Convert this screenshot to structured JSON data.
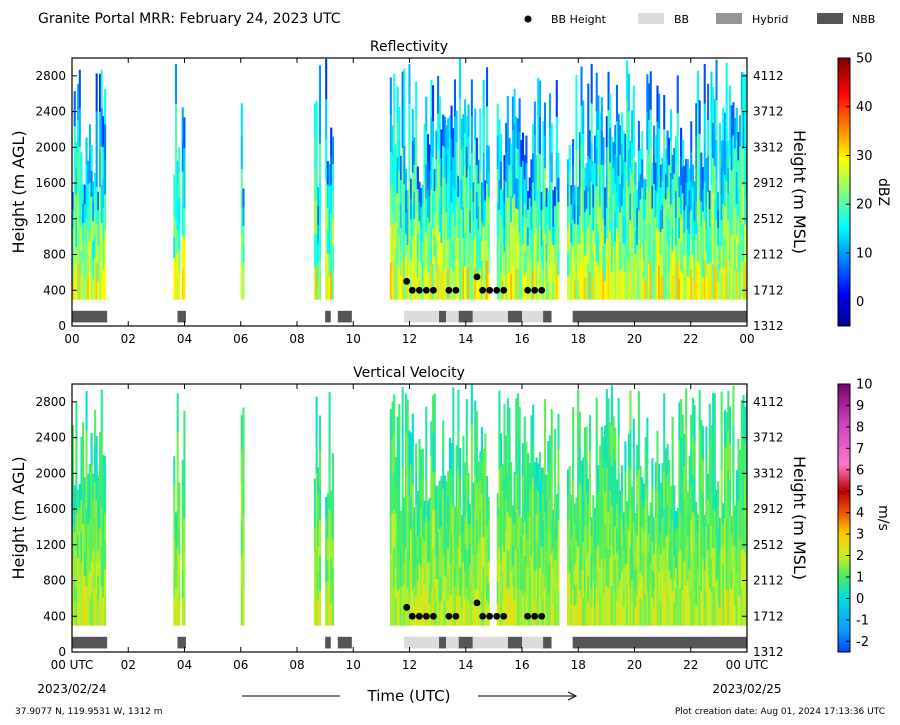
{
  "header": {
    "title": "Granite Portal MRR:  February 24, 2023 UTC",
    "legend": [
      {
        "label": "BB Height",
        "kind": "dot",
        "color": "#000000"
      },
      {
        "label": "BB",
        "kind": "patch",
        "color": "#dcdcdc"
      },
      {
        "label": "Hybrid",
        "kind": "patch",
        "color": "#969696"
      },
      {
        "label": "NBB",
        "kind": "patch",
        "color": "#555555"
      }
    ]
  },
  "footer": {
    "location": "37.9077 N, 119.9531 W, 1312 m",
    "creation": "Plot creation date: Aug 01, 2024 17:13:36 UTC",
    "xlabel": "Time (UTC)",
    "start_date": "2023/02/24",
    "end_date": "2023/02/25"
  },
  "chart_data": [
    {
      "type": "heatmap",
      "title": "Reflectivity",
      "ylabel": "Height (m AGL)",
      "y2label": "Height (m MSL)",
      "xlim": [
        0,
        24
      ],
      "ylim": [
        0,
        3000
      ],
      "x_ticks": [
        "00",
        "02",
        "04",
        "06",
        "08",
        "10",
        "12",
        "14",
        "16",
        "18",
        "20",
        "22",
        "00"
      ],
      "y_ticks": [
        0,
        400,
        800,
        1200,
        1600,
        2000,
        2400,
        2800
      ],
      "y2_ticks": [
        1312,
        1712,
        2112,
        2512,
        2912,
        3312,
        3712,
        4112
      ],
      "colorbar": {
        "label": "dBZ",
        "min": -5,
        "max": 50,
        "ticks": [
          0,
          10,
          20,
          30,
          40,
          50
        ],
        "palette": "jet"
      },
      "precip_periods": [
        [
          0.0,
          1.2
        ],
        [
          3.6,
          3.8
        ],
        [
          3.9,
          4.0
        ],
        [
          6.0,
          6.1
        ],
        [
          8.6,
          8.8
        ],
        [
          9.0,
          9.3
        ],
        [
          11.3,
          14.8
        ],
        [
          15.1,
          17.3
        ],
        [
          17.6,
          24.0
        ]
      ],
      "bb_height": [
        {
          "t": 11.9,
          "h": 500
        },
        {
          "t": 12.1,
          "h": 400
        },
        {
          "t": 12.35,
          "h": 400
        },
        {
          "t": 12.6,
          "h": 400
        },
        {
          "t": 12.85,
          "h": 400
        },
        {
          "t": 13.4,
          "h": 400
        },
        {
          "t": 13.65,
          "h": 400
        },
        {
          "t": 14.4,
          "h": 550
        },
        {
          "t": 14.6,
          "h": 400
        },
        {
          "t": 14.85,
          "h": 400
        },
        {
          "t": 15.1,
          "h": 400
        },
        {
          "t": 15.35,
          "h": 400
        },
        {
          "t": 16.2,
          "h": 400
        },
        {
          "t": 16.45,
          "h": 400
        },
        {
          "t": 16.7,
          "h": 400
        }
      ],
      "bb_class": [
        {
          "start": 0.0,
          "end": 1.25,
          "class": "NBB"
        },
        {
          "start": 3.75,
          "end": 4.05,
          "class": "NBB"
        },
        {
          "start": 9.0,
          "end": 9.2,
          "class": "NBB"
        },
        {
          "start": 9.45,
          "end": 9.95,
          "class": "NBB"
        },
        {
          "start": 11.8,
          "end": 13.05,
          "class": "BB"
        },
        {
          "start": 13.05,
          "end": 13.3,
          "class": "NBB"
        },
        {
          "start": 13.3,
          "end": 13.75,
          "class": "BB"
        },
        {
          "start": 13.75,
          "end": 14.25,
          "class": "NBB"
        },
        {
          "start": 14.25,
          "end": 15.5,
          "class": "BB"
        },
        {
          "start": 15.5,
          "end": 16.0,
          "class": "NBB"
        },
        {
          "start": 16.0,
          "end": 16.75,
          "class": "BB"
        },
        {
          "start": 16.75,
          "end": 17.05,
          "class": "NBB"
        },
        {
          "start": 17.8,
          "end": 24.0,
          "class": "NBB"
        }
      ]
    },
    {
      "type": "heatmap",
      "title": "Vertical Velocity",
      "ylabel": "Height (m AGL)",
      "y2label": "Height (m MSL)",
      "xlim": [
        0,
        24
      ],
      "ylim": [
        0,
        3000
      ],
      "x_ticks": [
        "00 UTC",
        "02",
        "04",
        "06",
        "08",
        "10",
        "12",
        "14",
        "16",
        "18",
        "20",
        "22",
        "00 UTC"
      ],
      "y_ticks": [
        0,
        400,
        800,
        1200,
        1600,
        2000,
        2400,
        2800
      ],
      "y2_ticks": [
        1312,
        1712,
        2112,
        2512,
        2912,
        3312,
        3712,
        4112
      ],
      "colorbar": {
        "label": "m/s",
        "min": -2.5,
        "max": 10,
        "ticks": [
          -2,
          -1,
          0,
          1,
          2,
          3,
          4,
          5,
          6,
          7,
          8,
          9,
          10
        ],
        "palette": "velocity"
      },
      "precip_periods": [
        [
          0.0,
          1.2
        ],
        [
          3.6,
          3.8
        ],
        [
          3.9,
          4.0
        ],
        [
          6.0,
          6.1
        ],
        [
          8.6,
          8.8
        ],
        [
          9.0,
          9.3
        ],
        [
          11.3,
          14.8
        ],
        [
          15.1,
          17.3
        ],
        [
          17.6,
          24.0
        ]
      ],
      "bb_height": [
        {
          "t": 11.9,
          "h": 500
        },
        {
          "t": 12.1,
          "h": 400
        },
        {
          "t": 12.35,
          "h": 400
        },
        {
          "t": 12.6,
          "h": 400
        },
        {
          "t": 12.85,
          "h": 400
        },
        {
          "t": 13.4,
          "h": 400
        },
        {
          "t": 13.65,
          "h": 400
        },
        {
          "t": 14.4,
          "h": 550
        },
        {
          "t": 14.6,
          "h": 400
        },
        {
          "t": 14.85,
          "h": 400
        },
        {
          "t": 15.1,
          "h": 400
        },
        {
          "t": 15.35,
          "h": 400
        },
        {
          "t": 16.2,
          "h": 400
        },
        {
          "t": 16.45,
          "h": 400
        },
        {
          "t": 16.7,
          "h": 400
        }
      ],
      "bb_class": [
        {
          "start": 0.0,
          "end": 1.25,
          "class": "NBB"
        },
        {
          "start": 3.75,
          "end": 4.05,
          "class": "NBB"
        },
        {
          "start": 9.0,
          "end": 9.2,
          "class": "NBB"
        },
        {
          "start": 9.45,
          "end": 9.95,
          "class": "NBB"
        },
        {
          "start": 11.8,
          "end": 13.05,
          "class": "BB"
        },
        {
          "start": 13.05,
          "end": 13.3,
          "class": "NBB"
        },
        {
          "start": 13.3,
          "end": 13.75,
          "class": "BB"
        },
        {
          "start": 13.75,
          "end": 14.25,
          "class": "NBB"
        },
        {
          "start": 14.25,
          "end": 15.5,
          "class": "BB"
        },
        {
          "start": 15.5,
          "end": 16.0,
          "class": "NBB"
        },
        {
          "start": 16.0,
          "end": 16.75,
          "class": "BB"
        },
        {
          "start": 16.75,
          "end": 17.05,
          "class": "NBB"
        },
        {
          "start": 17.8,
          "end": 24.0,
          "class": "NBB"
        }
      ]
    }
  ]
}
